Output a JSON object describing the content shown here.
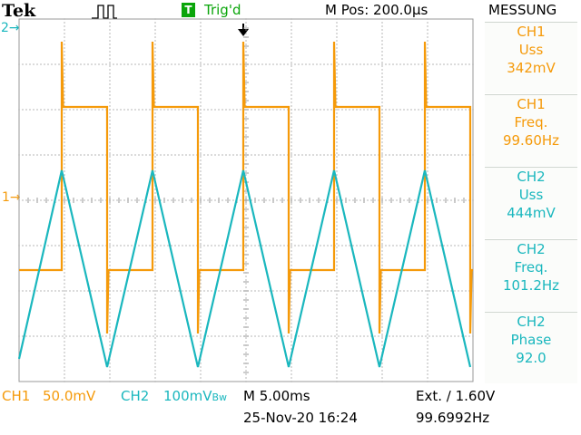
{
  "header": {
    "brand": "Tek",
    "trigger_status": "Trig'd",
    "trigger_badge": "T",
    "horizontal_position": "M Pos: 200.0µs",
    "menu_title": "MESSUNG"
  },
  "markers": {
    "ch2_ground": "2→",
    "ch1_ground": "1→"
  },
  "measurements": [
    {
      "source": "CH1",
      "label": "Uss",
      "value": "342mV",
      "color": "#f59a0a"
    },
    {
      "source": "CH1",
      "label": "Freq.",
      "value": "99.60Hz",
      "color": "#f59a0a"
    },
    {
      "source": "CH2",
      "label": "Uss",
      "value": "444mV",
      "color": "#1ab7be"
    },
    {
      "source": "CH2",
      "label": "Freq.",
      "value": "101.2Hz",
      "color": "#1ab7be"
    },
    {
      "source": "CH2",
      "label": "Phase",
      "value": "92.0",
      "color": "#1ab7be"
    }
  ],
  "footer": {
    "ch1_label": "CH1",
    "ch1_scale": "50.0mV",
    "ch2_label": "CH2",
    "ch2_scale": "100mV",
    "ch2_bw": "Bw",
    "timebase": "M 5.00ms",
    "trigger_setting": "Ext. ∕ 1.60V",
    "date": "25-Nov-20 16:24",
    "trigger_frequency": "99.6992Hz"
  },
  "colors": {
    "ch1": "#f59a0a",
    "ch2": "#1ab7be",
    "grid": "#9a9a9a",
    "trigger_badge": "#0aa50a"
  },
  "chart_data": {
    "type": "line",
    "timebase_per_div": "5.00ms",
    "x_divisions": 10,
    "y_divisions": 8,
    "series": [
      {
        "name": "CH1",
        "shape": "square",
        "period_divisions": 2.0,
        "amplitude_divisions": 3.6,
        "note": "square wave with spikes at edges"
      },
      {
        "name": "CH2",
        "shape": "triangle",
        "period_divisions": 2.0,
        "amplitude_divisions": 4.3
      }
    ]
  }
}
